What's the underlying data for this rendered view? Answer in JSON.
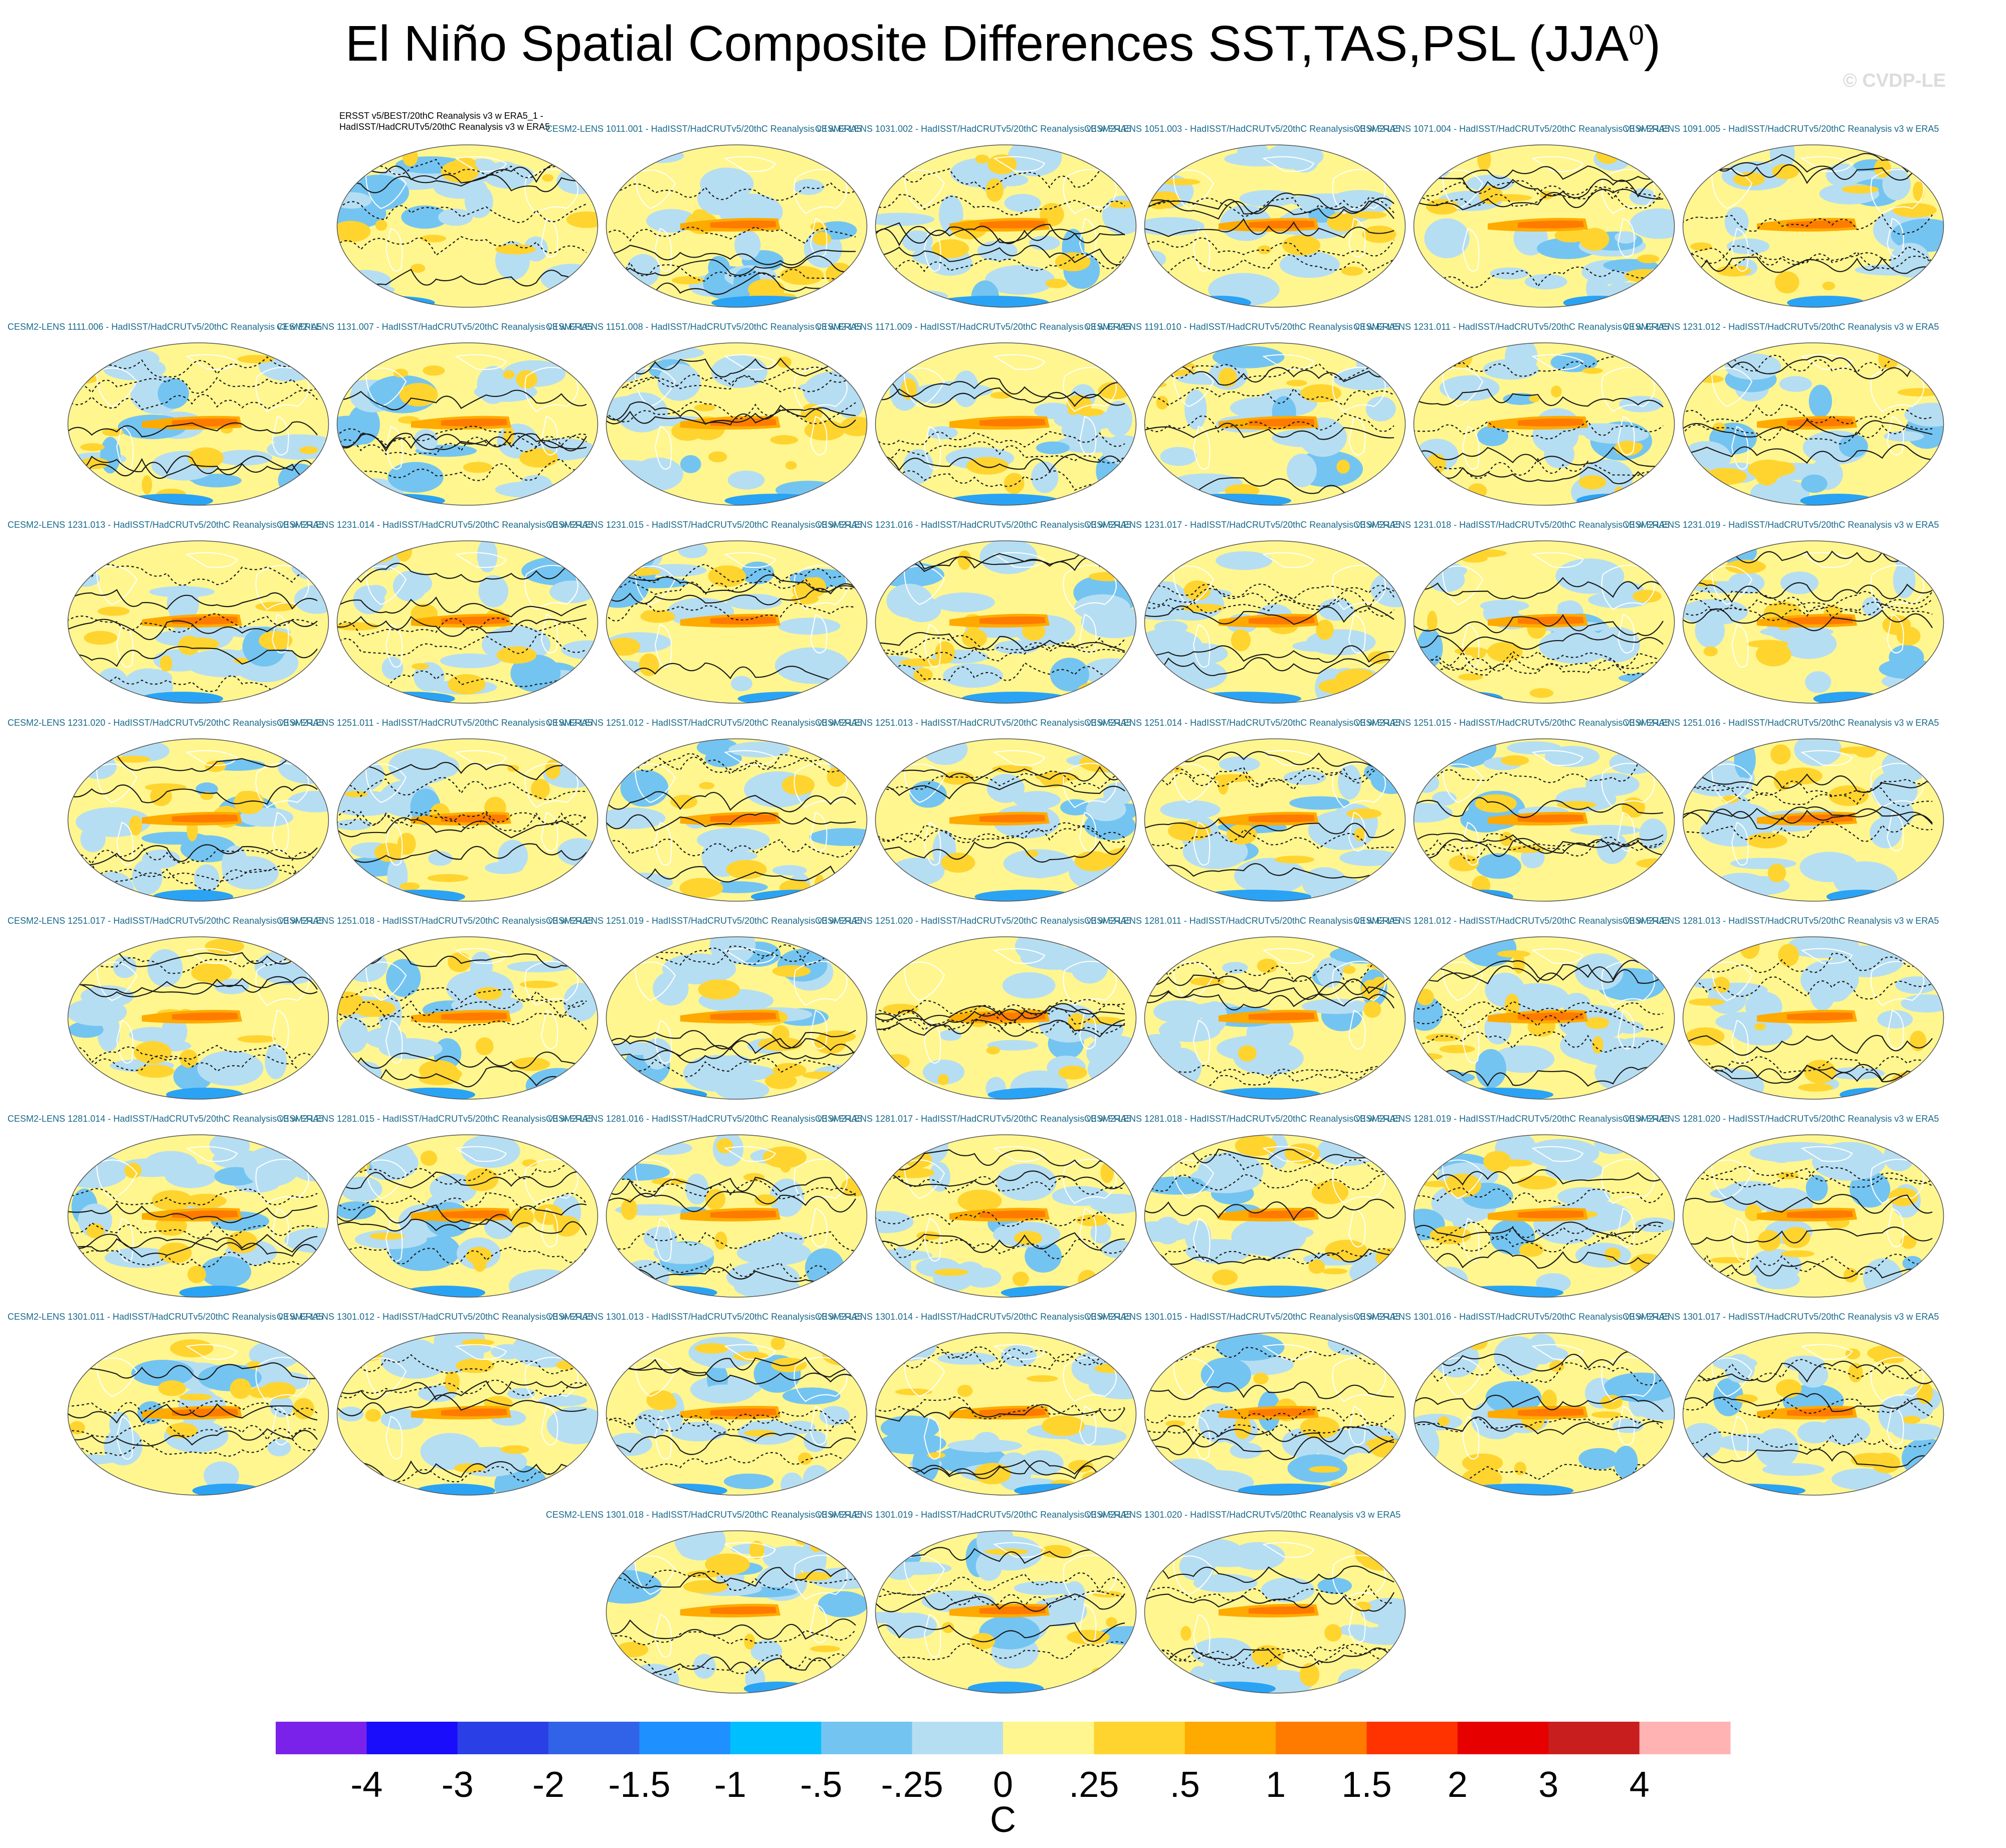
{
  "title_main": "El Niño Spatial Composite Differences SST,TAS,PSL (JJA",
  "title_sup": "0",
  "title_end": ")",
  "copyright": "© CVDP-LE",
  "colors": {
    "warm": [
      "#fff68f",
      "#ffd42f",
      "#ffaa00",
      "#ff7b00",
      "#ff3300"
    ],
    "cool": [
      "#b6def2",
      "#74c4f1",
      "#2aa3f5",
      "#3163e9"
    ],
    "contour": "#1a1a1a",
    "label": "#1a6a8a"
  },
  "chart_data": {
    "type": "map-panel-grid",
    "title": "El Niño Spatial Composite Differences SST,TAS,PSL (JJA0)",
    "variables": [
      "SST",
      "TAS",
      "PSL"
    ],
    "season": "JJA0",
    "units": "C",
    "panels": [
      {
        "label_line1": "ERSST v5/BEST/20thC Reanalysis v3 w ERA5_1 -",
        "label_line2": "HadISST/HadCRUTv5/20thC Reanalysis v3 w ERA5"
      },
      {
        "label": "CESM2-LENS 1011.001 - HadISST/HadCRUTv5/20thC Reanalysis v3 w ERA5"
      },
      {
        "label": "CESM2-LENS 1031.002 - HadISST/HadCRUTv5/20thC Reanalysis v3 w ERA5"
      },
      {
        "label": "CESM2-LENS 1051.003 - HadISST/HadCRUTv5/20thC Reanalysis v3 w ERA5"
      },
      {
        "label": "CESM2-LENS 1071.004 - HadISST/HadCRUTv5/20thC Reanalysis v3 w ERA5"
      },
      {
        "label": "CESM2-LENS 1091.005 - HadISST/HadCRUTv5/20thC Reanalysis v3 w ERA5"
      },
      {
        "label": "CESM2-LENS 1111.006 - HadISST/HadCRUTv5/20thC Reanalysis v3 w ERA5"
      },
      {
        "label": "CESM2-LENS 1131.007 - HadISST/HadCRUTv5/20thC Reanalysis v3 w ERA5"
      },
      {
        "label": "CESM2-LENS 1151.008 - HadISST/HadCRUTv5/20thC Reanalysis v3 w ERA5"
      },
      {
        "label": "CESM2-LENS 1171.009 - HadISST/HadCRUTv5/20thC Reanalysis v3 w ERA5"
      },
      {
        "label": "CESM2-LENS 1191.010 - HadISST/HadCRUTv5/20thC Reanalysis v3 w ERA5"
      },
      {
        "label": "CESM2-LENS 1231.011 - HadISST/HadCRUTv5/20thC Reanalysis v3 w ERA5"
      },
      {
        "label": "CESM2-LENS 1231.012 - HadISST/HadCRUTv5/20thC Reanalysis v3 w ERA5"
      },
      {
        "label": "CESM2-LENS 1231.013 - HadISST/HadCRUTv5/20thC Reanalysis v3 w ERA5"
      },
      {
        "label": "CESM2-LENS 1231.014 - HadISST/HadCRUTv5/20thC Reanalysis v3 w ERA5"
      },
      {
        "label": "CESM2-LENS 1231.015 - HadISST/HadCRUTv5/20thC Reanalysis v3 w ERA5"
      },
      {
        "label": "CESM2-LENS 1231.016 - HadISST/HadCRUTv5/20thC Reanalysis v3 w ERA5"
      },
      {
        "label": "CESM2-LENS 1231.017 - HadISST/HadCRUTv5/20thC Reanalysis v3 w ERA5"
      },
      {
        "label": "CESM2-LENS 1231.018 - HadISST/HadCRUTv5/20thC Reanalysis v3 w ERA5"
      },
      {
        "label": "CESM2-LENS 1231.019 - HadISST/HadCRUTv5/20thC Reanalysis v3 w ERA5"
      },
      {
        "label": "CESM2-LENS 1231.020 - HadISST/HadCRUTv5/20thC Reanalysis v3 w ERA5"
      },
      {
        "label": "CESM2-LENS 1251.011 - HadISST/HadCRUTv5/20thC Reanalysis v3 w ERA5"
      },
      {
        "label": "CESM2-LENS 1251.012 - HadISST/HadCRUTv5/20thC Reanalysis v3 w ERA5"
      },
      {
        "label": "CESM2-LENS 1251.013 - HadISST/HadCRUTv5/20thC Reanalysis v3 w ERA5"
      },
      {
        "label": "CESM2-LENS 1251.014 - HadISST/HadCRUTv5/20thC Reanalysis v3 w ERA5"
      },
      {
        "label": "CESM2-LENS 1251.015 - HadISST/HadCRUTv5/20thC Reanalysis v3 w ERA5"
      },
      {
        "label": "CESM2-LENS 1251.016 - HadISST/HadCRUTv5/20thC Reanalysis v3 w ERA5"
      },
      {
        "label": "CESM2-LENS 1251.017 - HadISST/HadCRUTv5/20thC Reanalysis v3 w ERA5"
      },
      {
        "label": "CESM2-LENS 1251.018 - HadISST/HadCRUTv5/20thC Reanalysis v3 w ERA5"
      },
      {
        "label": "CESM2-LENS 1251.019 - HadISST/HadCRUTv5/20thC Reanalysis v3 w ERA5"
      },
      {
        "label": "CESM2-LENS 1251.020 - HadISST/HadCRUTv5/20thC Reanalysis v3 w ERA5"
      },
      {
        "label": "CESM2-LENS 1281.011 - HadISST/HadCRUTv5/20thC Reanalysis v3 w ERA5"
      },
      {
        "label": "CESM2-LENS 1281.012 - HadISST/HadCRUTv5/20thC Reanalysis v3 w ERA5"
      },
      {
        "label": "CESM2-LENS 1281.013 - HadISST/HadCRUTv5/20thC Reanalysis v3 w ERA5"
      },
      {
        "label": "CESM2-LENS 1281.014 - HadISST/HadCRUTv5/20thC Reanalysis v3 w ERA5"
      },
      {
        "label": "CESM2-LENS 1281.015 - HadISST/HadCRUTv5/20thC Reanalysis v3 w ERA5"
      },
      {
        "label": "CESM2-LENS 1281.016 - HadISST/HadCRUTv5/20thC Reanalysis v3 w ERA5"
      },
      {
        "label": "CESM2-LENS 1281.017 - HadISST/HadCRUTv5/20thC Reanalysis v3 w ERA5"
      },
      {
        "label": "CESM2-LENS 1281.018 - HadISST/HadCRUTv5/20thC Reanalysis v3 w ERA5"
      },
      {
        "label": "CESM2-LENS 1281.019 - HadISST/HadCRUTv5/20thC Reanalysis v3 w ERA5"
      },
      {
        "label": "CESM2-LENS 1281.020 - HadISST/HadCRUTv5/20thC Reanalysis v3 w ERA5"
      },
      {
        "label": "CESM2-LENS 1301.011 - HadISST/HadCRUTv5/20thC Reanalysis v3 w ERA5"
      },
      {
        "label": "CESM2-LENS 1301.012 - HadISST/HadCRUTv5/20thC Reanalysis v3 w ERA5"
      },
      {
        "label": "CESM2-LENS 1301.013 - HadISST/HadCRUTv5/20thC Reanalysis v3 w ERA5"
      },
      {
        "label": "CESM2-LENS 1301.014 - HadISST/HadCRUTv5/20thC Reanalysis v3 w ERA5"
      },
      {
        "label": "CESM2-LENS 1301.015 - HadISST/HadCRUTv5/20thC Reanalysis v3 w ERA5"
      },
      {
        "label": "CESM2-LENS 1301.016 - HadISST/HadCRUTv5/20thC Reanalysis v3 w ERA5"
      },
      {
        "label": "CESM2-LENS 1301.017 - HadISST/HadCRUTv5/20thC Reanalysis v3 w ERA5"
      },
      {
        "label": "CESM2-LENS 1301.018 - HadISST/HadCRUTv5/20thC Reanalysis v3 w ERA5"
      },
      {
        "label": "CESM2-LENS 1301.019 - HadISST/HadCRUTv5/20thC Reanalysis v3 w ERA5"
      },
      {
        "label": "CESM2-LENS 1301.020 - HadISST/HadCRUTv5/20thC Reanalysis v3 w ERA5"
      }
    ],
    "colorbar": {
      "levels": [
        "-4",
        "-3",
        "-2",
        "-1.5",
        "-1",
        "-.5",
        "-.25",
        "0",
        ".25",
        ".5",
        "1",
        "1.5",
        "2",
        "3",
        "4"
      ],
      "colors": [
        "#7b22ea",
        "#1a0dfb",
        "#2a40e6",
        "#3163e9",
        "#1e90ff",
        "#00bfff",
        "#74c4f1",
        "#b6def2",
        "#fff68f",
        "#ffd42f",
        "#ffaa00",
        "#ff7b00",
        "#ff3300",
        "#e60000",
        "#c81e1e",
        "#ffb3b3"
      ],
      "label": "C"
    }
  }
}
